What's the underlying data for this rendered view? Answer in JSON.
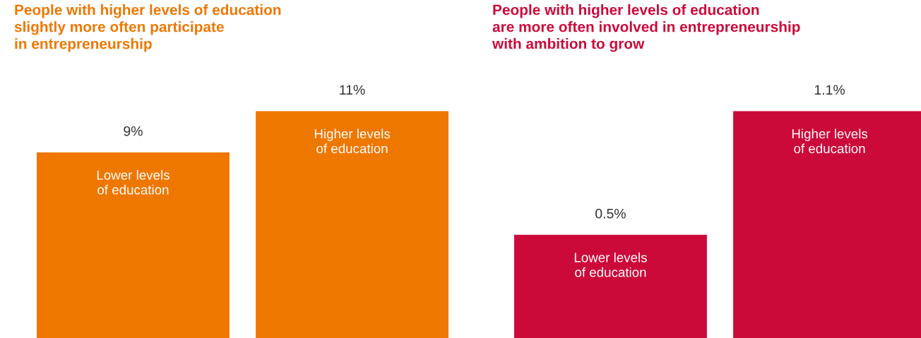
{
  "chart_data": [
    {
      "type": "bar",
      "title": "People with higher levels of education\nslightly more often participate\nin entrepreneurship",
      "categories": [
        "Lower levels\nof education",
        "Higher levels\nof education"
      ],
      "values": [
        9,
        11
      ],
      "value_labels": [
        "9%",
        "11%"
      ],
      "color": "#ee7700"
    },
    {
      "type": "bar",
      "title": "People with higher levels of education\nare more often involved in entrepreneurship\nwith ambition to grow",
      "categories": [
        "Lower levels\nof education",
        "Higher levels\nof education"
      ],
      "values": [
        0.5,
        1.1
      ],
      "value_labels": [
        "0.5%",
        "1.1%"
      ],
      "color": "#cc0a3a"
    }
  ]
}
